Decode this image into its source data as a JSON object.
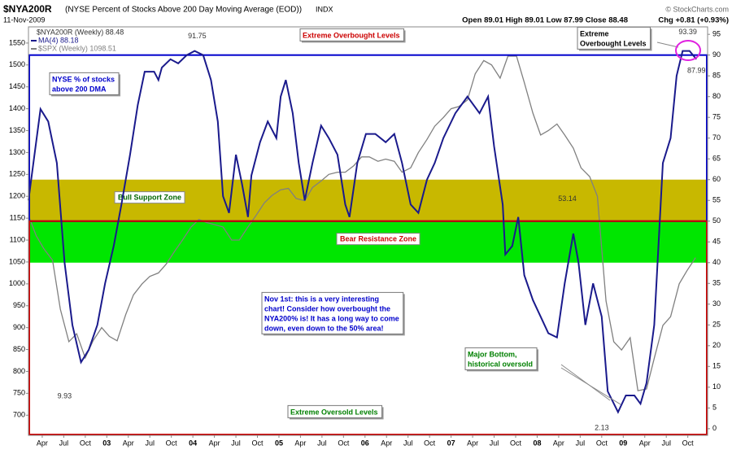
{
  "chart_data": {
    "type": "line",
    "title": "$NYA200R",
    "subtitle": "(NYSE Percent of Stocks Above 200 Day Moving Average (EOD))",
    "exchange": "INDX",
    "date": "11-Nov-2009",
    "quote": "Open 89.01  High 89.01  Low 87.99  Close 88.48",
    "change": "Chg +0.81 (+0.93%)",
    "credit": "© StockCharts.com",
    "legend_header": "$NYA200R (Weekly) 88.48",
    "xlim": [
      2002.09,
      2009.98
    ],
    "xticks": [
      {
        "value": 2002.25,
        "label": "Apr"
      },
      {
        "value": 2002.5,
        "label": "Jul"
      },
      {
        "value": 2002.75,
        "label": "Oct"
      },
      {
        "value": 2003,
        "label": "03"
      },
      {
        "value": 2003.25,
        "label": "Apr"
      },
      {
        "value": 2003.5,
        "label": "Jul"
      },
      {
        "value": 2003.75,
        "label": "Oct"
      },
      {
        "value": 2004,
        "label": "04"
      },
      {
        "value": 2004.25,
        "label": "Apr"
      },
      {
        "value": 2004.5,
        "label": "Jul"
      },
      {
        "value": 2004.75,
        "label": "Oct"
      },
      {
        "value": 2005,
        "label": "05"
      },
      {
        "value": 2005.25,
        "label": "Apr"
      },
      {
        "value": 2005.5,
        "label": "Jul"
      },
      {
        "value": 2005.75,
        "label": "Oct"
      },
      {
        "value": 2006,
        "label": "06"
      },
      {
        "value": 2006.25,
        "label": "Apr"
      },
      {
        "value": 2006.5,
        "label": "Jul"
      },
      {
        "value": 2006.75,
        "label": "Oct"
      },
      {
        "value": 2007,
        "label": "07"
      },
      {
        "value": 2007.25,
        "label": "Apr"
      },
      {
        "value": 2007.5,
        "label": "Jul"
      },
      {
        "value": 2007.75,
        "label": "Oct"
      },
      {
        "value": 2008,
        "label": "08"
      },
      {
        "value": 2008.25,
        "label": "Apr"
      },
      {
        "value": 2008.5,
        "label": "Jul"
      },
      {
        "value": 2008.75,
        "label": "Oct"
      },
      {
        "value": 2009,
        "label": "09"
      },
      {
        "value": 2009.25,
        "label": "Apr"
      },
      {
        "value": 2009.5,
        "label": "Jul"
      },
      {
        "value": 2009.75,
        "label": "Oct"
      }
    ],
    "ylim": [
      654,
      1587
    ],
    "yticks": [
      700,
      750,
      800,
      850,
      900,
      950,
      1000,
      1050,
      1100,
      1150,
      1200,
      1250,
      1300,
      1350,
      1400,
      1450,
      1500,
      1550
    ],
    "y2lim": [
      -1.6,
      96.8
    ],
    "y2ticks": [
      0,
      5,
      10,
      15,
      20,
      25,
      30,
      35,
      40,
      45,
      50,
      55,
      60,
      65,
      70,
      75,
      80,
      85,
      90,
      95
    ],
    "zones": [
      {
        "name": "Bull Support Zone",
        "from": 50,
        "to": 60,
        "color": "#c8b800",
        "text_color": "#006600"
      },
      {
        "name": "Bear Resistance Zone",
        "from": 40,
        "to": 50,
        "color": "#00e600",
        "text_color": "#cc0000"
      }
    ],
    "boxes": [
      {
        "from": 50,
        "to": 90,
        "color": "#0000cc"
      },
      {
        "to": 50,
        "color": "#cc0000"
      }
    ],
    "series": [
      {
        "name": "$SPX (Weekly) 1098.51",
        "color": "#808080",
        "axis": "y",
        "x": [
          2002.09,
          2002.18,
          2002.27,
          2002.37,
          2002.46,
          2002.56,
          2002.65,
          2002.75,
          2002.84,
          2002.94,
          2003.03,
          2003.12,
          2003.22,
          2003.31,
          2003.41,
          2003.5,
          2003.6,
          2003.69,
          2003.79,
          2003.88,
          2003.98,
          2004.07,
          2004.16,
          2004.26,
          2004.35,
          2004.45,
          2004.54,
          2004.64,
          2004.73,
          2004.83,
          2004.92,
          2005.02,
          2005.11,
          2005.2,
          2005.3,
          2005.39,
          2005.49,
          2005.58,
          2005.68,
          2005.77,
          2005.87,
          2005.96,
          2006.05,
          2006.15,
          2006.24,
          2006.34,
          2006.43,
          2006.53,
          2006.62,
          2006.72,
          2006.81,
          2006.91,
          2007.0,
          2007.09,
          2007.19,
          2007.28,
          2007.38,
          2007.47,
          2007.57,
          2007.66,
          2007.76,
          2007.85,
          2007.95,
          2008.04,
          2008.13,
          2008.23,
          2008.32,
          2008.42,
          2008.51,
          2008.61,
          2008.7,
          2008.8,
          2008.89,
          2008.98,
          2009.08,
          2009.17,
          2009.27,
          2009.36,
          2009.46,
          2009.55,
          2009.65,
          2009.74,
          2009.84
        ],
        "values": [
          1156,
          1110,
          1080,
          1054,
          942,
          868,
          886,
          831,
          870,
          900,
          880,
          870,
          930,
          975,
          1000,
          1017,
          1025,
          1045,
          1075,
          1100,
          1130,
          1147,
          1140,
          1135,
          1130,
          1100,
          1100,
          1130,
          1155,
          1185,
          1202,
          1215,
          1218,
          1195,
          1190,
          1220,
          1235,
          1250,
          1255,
          1255,
          1270,
          1290,
          1290,
          1280,
          1285,
          1280,
          1255,
          1265,
          1300,
          1330,
          1360,
          1380,
          1400,
          1405,
          1420,
          1480,
          1510,
          1500,
          1470,
          1520,
          1520,
          1460,
          1390,
          1340,
          1350,
          1365,
          1340,
          1310,
          1265,
          1245,
          1200,
          961,
          868,
          849,
          877,
          756,
          760,
          830,
          905,
          925,
          1000,
          1030,
          1060
        ]
      },
      {
        "name": "MA(4) 88.18",
        "color": "#1a1a8c",
        "axis": "y2",
        "x": [
          2002.09,
          2002.23,
          2002.32,
          2002.42,
          2002.51,
          2002.6,
          2002.7,
          2002.79,
          2002.89,
          2002.98,
          2003.08,
          2003.17,
          2003.27,
          2003.36,
          2003.44,
          2003.55,
          2003.6,
          2003.64,
          2003.74,
          2003.83,
          2003.93,
          2004.02,
          2004.12,
          2004.21,
          2004.29,
          2004.35,
          2004.42,
          2004.5,
          2004.57,
          2004.64,
          2004.68,
          2004.78,
          2004.87,
          2004.97,
          2005.02,
          2005.08,
          2005.16,
          2005.23,
          2005.3,
          2005.39,
          2005.49,
          2005.58,
          2005.68,
          2005.77,
          2005.82,
          2005.91,
          2006.01,
          2006.12,
          2006.24,
          2006.34,
          2006.43,
          2006.53,
          2006.62,
          2006.72,
          2006.81,
          2006.91,
          2007.05,
          2007.19,
          2007.33,
          2007.43,
          2007.5,
          2007.6,
          2007.63,
          2007.71,
          2007.78,
          2007.85,
          2007.95,
          2008.04,
          2008.13,
          2008.23,
          2008.32,
          2008.42,
          2008.48,
          2008.56,
          2008.65,
          2008.75,
          2008.82,
          2008.94,
          2009.03,
          2009.13,
          2009.2,
          2009.27,
          2009.36,
          2009.46,
          2009.55,
          2009.62,
          2009.69,
          2009.77,
          2009.85
        ],
        "values": [
          55,
          77,
          74,
          64,
          40,
          25,
          16,
          19,
          25,
          35,
          44,
          54,
          66,
          78,
          86,
          86,
          84,
          87,
          89,
          88,
          90,
          91,
          90,
          84,
          74,
          56,
          52,
          66,
          59,
          51,
          61,
          69,
          74,
          70,
          80,
          84,
          76,
          64,
          55,
          64,
          73,
          70,
          66,
          54,
          51,
          64,
          71,
          71,
          69,
          71,
          64,
          54,
          52,
          60,
          64,
          70,
          76,
          80,
          76,
          80,
          68,
          54,
          42,
          44,
          51,
          37,
          31,
          27,
          23,
          22,
          35,
          47,
          40,
          25,
          35,
          27,
          9,
          4,
          8,
          8,
          6,
          11,
          25,
          64,
          70,
          85,
          91,
          91,
          89
        ]
      }
    ],
    "point_labels": [
      {
        "x": 2004.05,
        "value": 91.75
      },
      {
        "x": 2002.51,
        "value": 9.93
      },
      {
        "x": 2008.35,
        "value": 53.14
      },
      {
        "x": 2008.75,
        "value": 2.13
      },
      {
        "x": 2009.75,
        "value": 93.39
      },
      {
        "x": 2009.85,
        "value": 87.99
      }
    ],
    "annotations": [
      {
        "lines": [
          "Extreme Overbought Levels"
        ],
        "color": "#cc0000"
      },
      {
        "lines": [
          "NYSE % of stocks",
          "above 200 DMA"
        ],
        "color": "#0000cc"
      },
      {
        "lines": [
          "Nov 1st: this is a very interesting",
          "chart!  Consider how overbought the",
          "NYA200% is!  It has a long way to come",
          "down, even down to the 50% area!"
        ],
        "color": "#0000cc"
      },
      {
        "lines": [
          "Major Bottom,",
          "historical oversold"
        ],
        "color": "#008000"
      },
      {
        "lines": [
          "Extreme Oversold Levels"
        ],
        "color": "#008000"
      },
      {
        "lines": [
          "Extreme",
          "Overbought Levels"
        ],
        "color": "#000000"
      }
    ]
  }
}
